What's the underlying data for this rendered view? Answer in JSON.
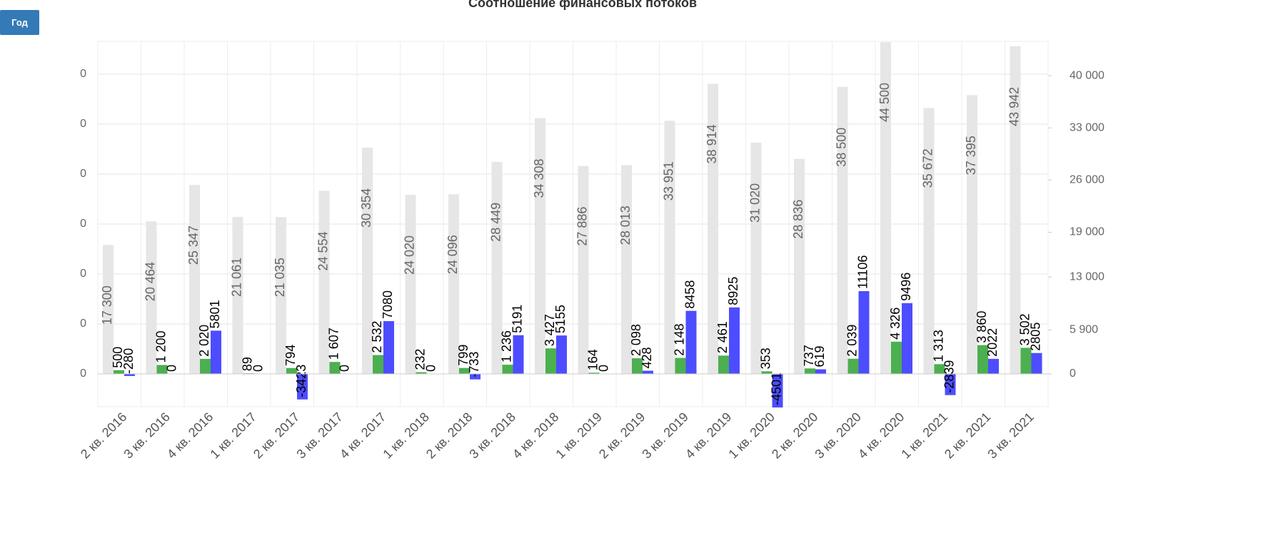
{
  "button": "Год",
  "chart_data": {
    "type": "bar",
    "title": "Соотношение финансовых потоков",
    "categories": [
      "2 кв. 2016",
      "3 кв. 2016",
      "4 кв. 2016",
      "1 кв. 2017",
      "2 кв. 2017",
      "3 кв. 2017",
      "4 кв. 2017",
      "1 кв. 2018",
      "2 кв. 2018",
      "3 кв. 2018",
      "4 кв. 2018",
      "1 кв. 2019",
      "2 кв. 2019",
      "3 кв. 2019",
      "4 кв. 2019",
      "1 кв. 2020",
      "2 кв. 2020",
      "3 кв. 2020",
      "4 кв. 2020",
      "1 кв. 2021",
      "2 кв. 2021",
      "3 кв. 2021"
    ],
    "series": [
      {
        "color": "#e6e6e6",
        "axis": "y2",
        "values": [
          17300,
          20464,
          25347,
          21061,
          21035,
          24554,
          30354,
          24020,
          24096,
          28449,
          34308,
          27886,
          28013,
          33951,
          38914,
          31020,
          28836,
          38500,
          44500,
          35672,
          37395,
          43942
        ],
        "value_labels": [
          "17 300",
          "20 464",
          "25 347",
          "21 061",
          "21 035",
          "24 554",
          "30 354",
          "24 020",
          "24 096",
          "28 449",
          "34 308",
          "27 886",
          "28 013",
          "33 951",
          "38 914",
          "31 020",
          "28 836",
          "38 500",
          "44 500",
          "35 672",
          "37 395",
          "43 942"
        ]
      },
      {
        "color": "#4caf50",
        "values": [
          500,
          1200,
          2020,
          89,
          794,
          1607,
          2532,
          232,
          799,
          1236,
          3427,
          164,
          2098,
          2148,
          2461,
          353,
          737,
          2039,
          4326,
          1313,
          3860,
          3502
        ],
        "value_labels": [
          "500",
          "1 200",
          "2 020",
          "89",
          "794",
          "1 607",
          "2 532",
          "232",
          "799",
          "1 236",
          "3 427",
          "164",
          "2 098",
          "2 148",
          "2 461",
          "353",
          "737",
          "2 039",
          "4 326",
          "1 313",
          "3 860",
          "3 502"
        ]
      },
      {
        "color": "#4d4dff",
        "values": [
          -280,
          0,
          5801,
          0,
          -3423,
          0,
          7080,
          0,
          -733,
          5191,
          5155,
          0,
          428,
          8458,
          8925,
          -4501,
          619,
          11106,
          9496,
          -2839,
          2022,
          2805
        ]
      }
    ],
    "ylim": [
      -4400,
      44600
    ],
    "yticks": [
      0,
      {
        "value": 6700,
        "label": "0"
      },
      {
        "value": 13400,
        "label": "0"
      },
      {
        "value": 20100,
        "label": "0"
      },
      {
        "value": 26800,
        "label": "0"
      },
      {
        "value": 33500,
        "label": "0"
      },
      {
        "value": 40200,
        "label": "0"
      }
    ],
    "y2lim": [
      -4400,
      44600
    ],
    "y2ticks": [
      0,
      {
        "value": 5900,
        "label": "5 900"
      },
      {
        "value": 13000,
        "label": "13 000"
      },
      {
        "value": 19000,
        "label": "19 000"
      },
      {
        "value": 26000,
        "label": "26 000"
      },
      {
        "value": 33000,
        "label": "33 000"
      },
      {
        "value": 40000,
        "label": "40 000"
      }
    ],
    "grid": true
  }
}
